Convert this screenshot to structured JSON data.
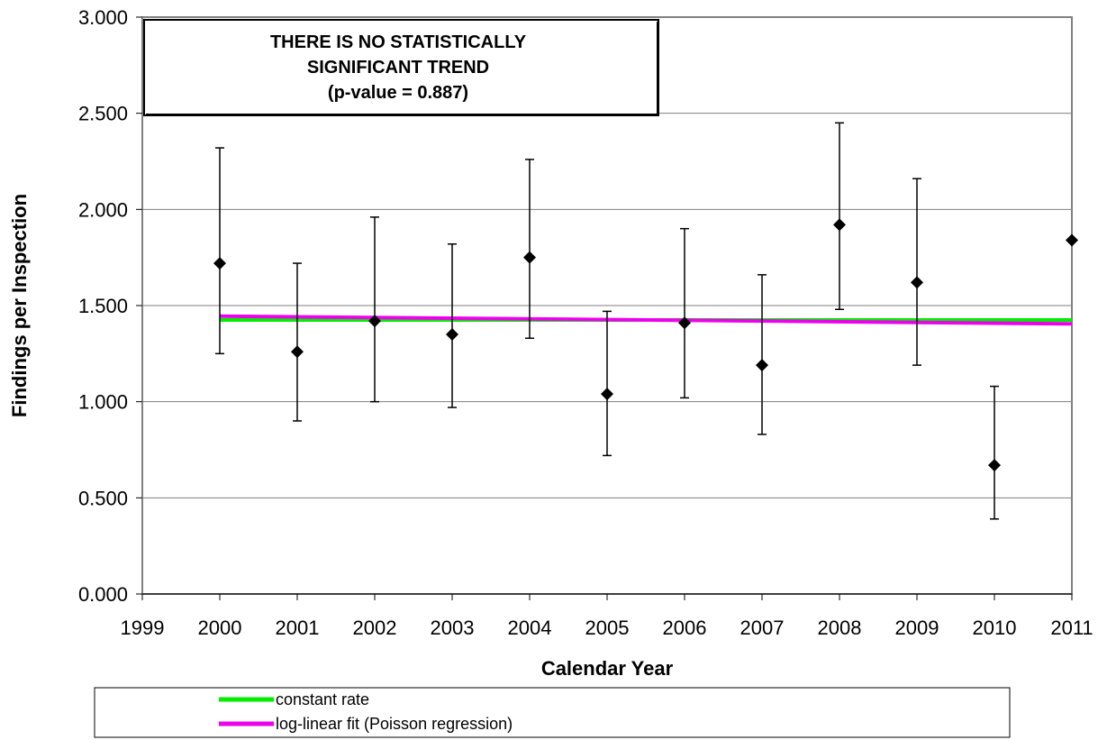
{
  "chart_data": {
    "type": "scatter",
    "title": "",
    "xlabel": "Calendar Year",
    "ylabel": "Findings per Inspection",
    "xlim": [
      1999,
      2011
    ],
    "ylim": [
      0,
      3
    ],
    "x_ticks": [
      "1999",
      "2000",
      "2001",
      "2002",
      "2003",
      "2004",
      "2005",
      "2006",
      "2007",
      "2008",
      "2009",
      "2010",
      "2011"
    ],
    "y_ticks": [
      "0.000",
      "0.500",
      "1.000",
      "1.500",
      "2.000",
      "2.500",
      "3.000"
    ],
    "grid": "horizontal",
    "points": [
      {
        "x": 2000,
        "y": 1.72,
        "low": 1.25,
        "high": 2.32
      },
      {
        "x": 2001,
        "y": 1.26,
        "low": 0.9,
        "high": 1.72
      },
      {
        "x": 2002,
        "y": 1.42,
        "low": 1.0,
        "high": 1.96
      },
      {
        "x": 2003,
        "y": 1.35,
        "low": 0.97,
        "high": 1.82
      },
      {
        "x": 2004,
        "y": 1.75,
        "low": 1.33,
        "high": 2.26
      },
      {
        "x": 2005,
        "y": 1.04,
        "low": 0.72,
        "high": 1.47
      },
      {
        "x": 2006,
        "y": 1.41,
        "low": 1.02,
        "high": 1.9
      },
      {
        "x": 2007,
        "y": 1.19,
        "low": 0.83,
        "high": 1.66
      },
      {
        "x": 2008,
        "y": 1.92,
        "low": 1.48,
        "high": 2.45
      },
      {
        "x": 2009,
        "y": 1.62,
        "low": 1.19,
        "high": 2.16
      },
      {
        "x": 2010,
        "y": 0.67,
        "low": 0.39,
        "high": 1.08
      },
      {
        "x": 2011,
        "y": 1.84,
        "low": null,
        "high": null
      }
    ],
    "series": [
      {
        "name": "constant rate",
        "color": "#00ee00",
        "x": [
          2000,
          2011
        ],
        "y": [
          1.425,
          1.425
        ]
      },
      {
        "name": "log-linear fit (Poisson regression)",
        "color": "#ee00ee",
        "x": [
          2000,
          2011
        ],
        "y": [
          1.445,
          1.405
        ]
      }
    ],
    "annotation": [
      "THERE IS NO STATISTICALLY",
      "SIGNIFICANT TREND",
      "(p-value  = 0.887)"
    ],
    "legend_position": "bottom"
  }
}
